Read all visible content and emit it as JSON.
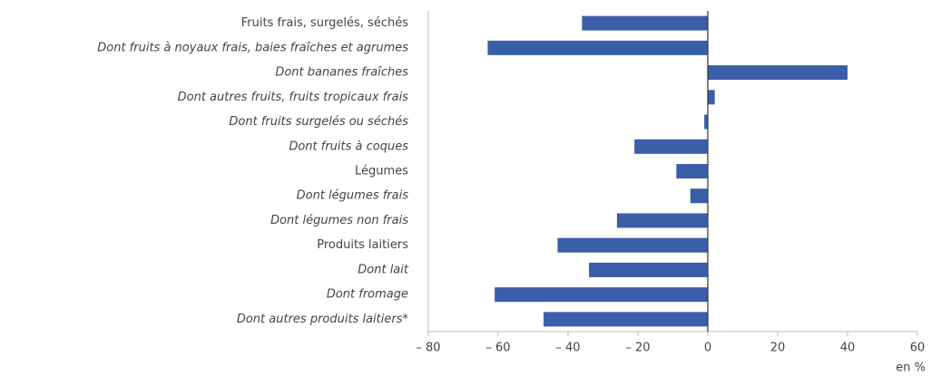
{
  "chart_data": {
    "type": "barh",
    "categories": [
      "Fruits frais, surgelés, séchés",
      "Dont fruits à noyaux frais, baies fraîches et agrumes",
      "Dont bananes fraîches",
      "Dont autres fruits, fruits tropicaux frais",
      "Dont fruits surgelés ou séchés",
      "Dont fruits à coques",
      "Légumes",
      "Dont légumes frais",
      "Dont légumes non frais",
      "Produits laitiers",
      "Dont lait",
      "Dont fromage",
      "Dont autres produits laitiers*"
    ],
    "italic": [
      false,
      true,
      true,
      true,
      true,
      true,
      false,
      true,
      true,
      false,
      true,
      true,
      true
    ],
    "values": [
      -36,
      -63,
      40,
      2,
      -1,
      -21,
      -9,
      -5,
      -26,
      -43,
      -34,
      -61,
      -47
    ],
    "color": "#3a5ea8",
    "xlim": [
      -80,
      60
    ],
    "xticks": [
      {
        "value": -80,
        "label": "– 80"
      },
      {
        "value": -60,
        "label": "– 60"
      },
      {
        "value": -40,
        "label": "– 40"
      },
      {
        "value": -20,
        "label": "– 20"
      },
      0,
      20,
      40,
      60
    ],
    "xlabel": "en %",
    "grid": false
  }
}
